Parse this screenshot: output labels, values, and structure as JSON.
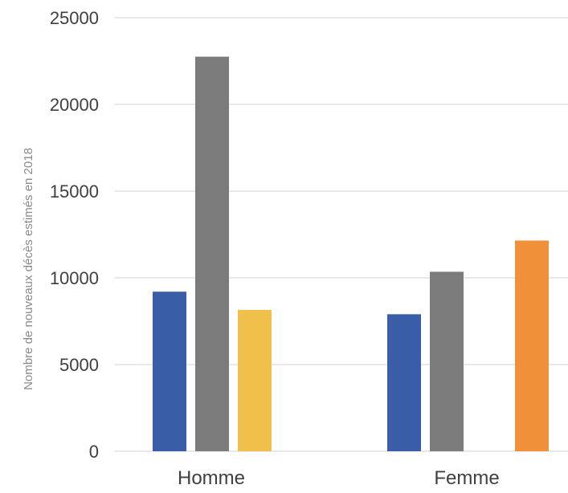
{
  "chart_data": {
    "type": "bar",
    "categories": [
      "Homme",
      "Femme"
    ],
    "series": [
      {
        "color": "#3a5da8",
        "values": [
          9200,
          7900
        ]
      },
      {
        "color": "#7b7b7b",
        "values": [
          22750,
          10350
        ]
      },
      {
        "color": "#f0c04a",
        "values": [
          8150,
          null
        ]
      },
      {
        "color": "#f0913a",
        "values": [
          null,
          12150
        ]
      }
    ],
    "ylabel": "Nombre de nouveaux décès estimés en 2018",
    "ylim": [
      0,
      25000
    ],
    "yticks": [
      "0",
      "5000",
      "10000",
      "15000",
      "20000",
      "25000"
    ],
    "grid": true,
    "legend": "none"
  }
}
